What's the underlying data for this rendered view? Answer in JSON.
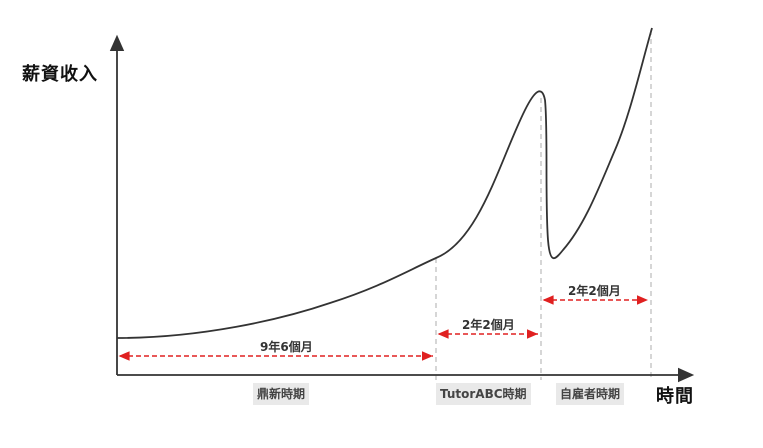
{
  "axes": {
    "y_title": "薪資收入",
    "x_title": "時間"
  },
  "phases": [
    {
      "label": "鼎新時期"
    },
    {
      "label": "TutorABC時期"
    },
    {
      "label": "自雇者時期"
    }
  ],
  "durations": [
    {
      "label": "9年6個月"
    },
    {
      "label": "2年2個月"
    },
    {
      "label": "2年2個月"
    }
  ],
  "colors": {
    "curve": "#333333",
    "axis": "#333333",
    "duration_arrow": "#e02020",
    "divider": "#bbbbbb",
    "phase_bg": "#e9e9e9"
  }
}
